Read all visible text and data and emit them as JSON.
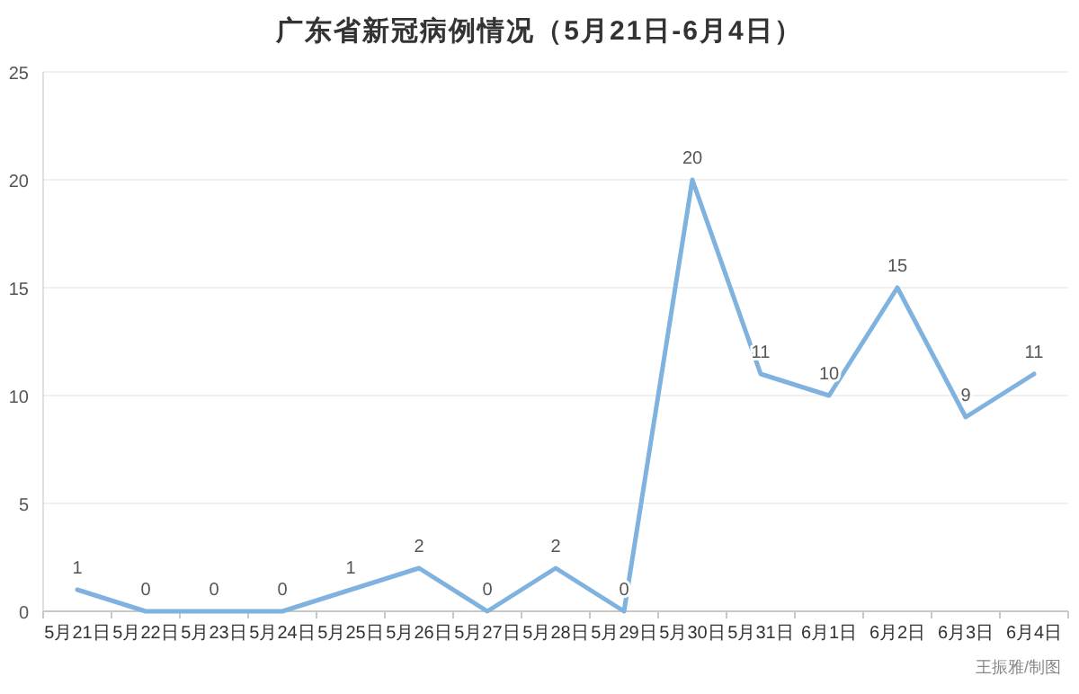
{
  "chart_data": {
    "type": "line",
    "title": "广东省新冠病例情况（5月21日-6月4日）",
    "categories": [
      "5月21日",
      "5月22日",
      "5月23日",
      "5月24日",
      "5月25日",
      "5月26日",
      "5月27日",
      "5月28日",
      "5月29日",
      "5月30日",
      "5月31日",
      "6月1日",
      "6月2日",
      "6月3日",
      "6月4日"
    ],
    "series": [
      {
        "color": "#7fb2de",
        "values": [
          1,
          0,
          0,
          0,
          1,
          2,
          0,
          2,
          0,
          20,
          11,
          10,
          15,
          9,
          11
        ]
      }
    ],
    "ylim": [
      0,
      25
    ],
    "yticks": [
      0,
      5,
      10,
      15,
      20,
      25
    ],
    "grid": "y",
    "data_labels": true,
    "marker": "none",
    "line_style": "solid",
    "annotations": [
      "王振雅/制图"
    ]
  }
}
